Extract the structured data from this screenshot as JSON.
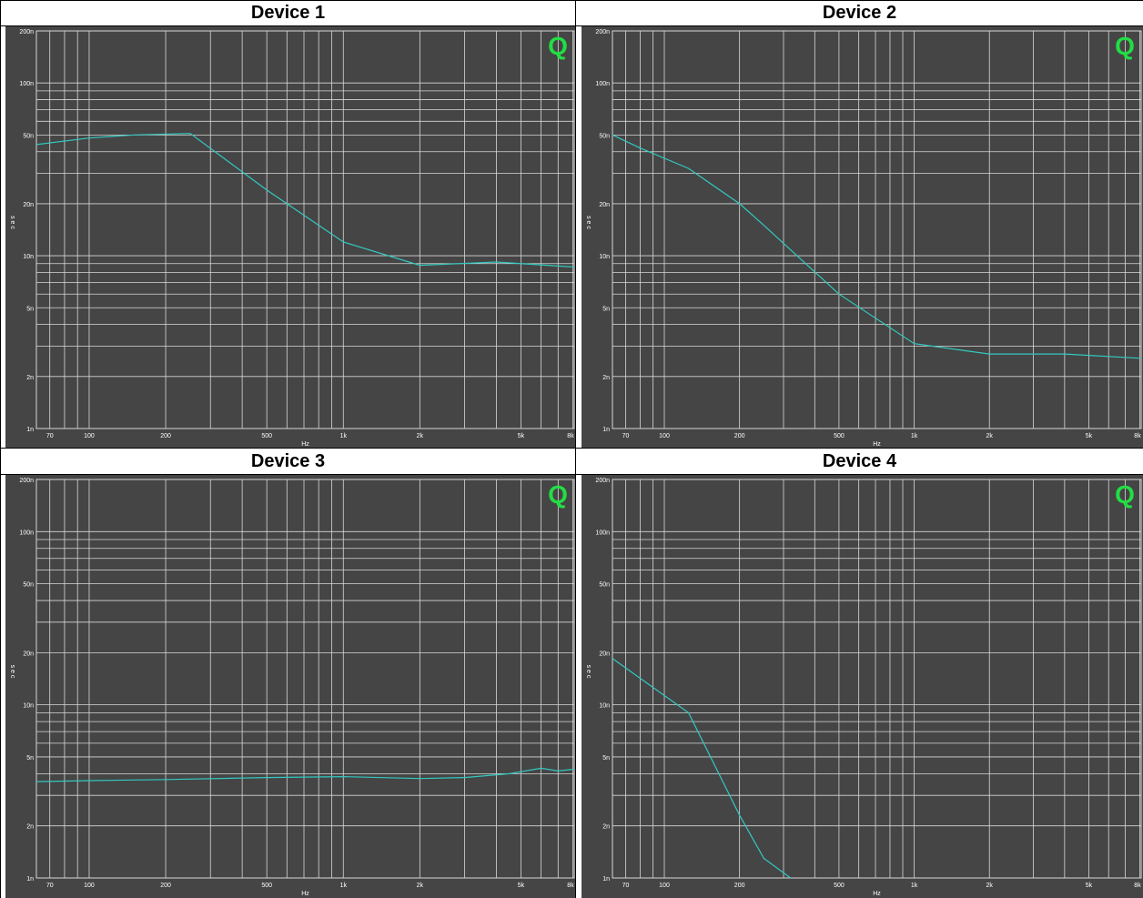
{
  "colors": {
    "background": "#454545",
    "grid": "#d8d8d8",
    "trace": "#33c8c0",
    "logo": "#22dd44",
    "label": "#ffffff"
  },
  "chart_data": [
    {
      "type": "line",
      "title": "Device 1",
      "xlabel": "Hz",
      "ylabel": "s e c",
      "xscale": "log",
      "yscale": "log",
      "xlim": [
        62,
        8100
      ],
      "ylim": [
        1e-09,
        2e-07
      ],
      "xticks": [
        {
          "v": 70,
          "t": "70"
        },
        {
          "v": 100,
          "t": "100"
        },
        {
          "v": 200,
          "t": "200"
        },
        {
          "v": 500,
          "t": "500"
        },
        {
          "v": 1000,
          "t": "1k"
        },
        {
          "v": 2000,
          "t": "2k"
        },
        {
          "v": 5000,
          "t": "5k"
        },
        {
          "v": 8000,
          "t": "8k"
        }
      ],
      "yticks": [
        {
          "v": 1e-09,
          "t": "1n"
        },
        {
          "v": 2e-09,
          "t": "2n"
        },
        {
          "v": 5e-09,
          "t": "5n"
        },
        {
          "v": 1e-08,
          "t": "10n"
        },
        {
          "v": 2e-08,
          "t": "20n"
        },
        {
          "v": 5e-08,
          "t": "50n"
        },
        {
          "v": 1e-07,
          "t": "100n"
        },
        {
          "v": 2e-07,
          "t": "200n"
        }
      ],
      "grid": true,
      "logo": "Q",
      "series": [
        {
          "x": [
            62,
            100,
            150,
            250,
            500,
            1000,
            2000,
            4000,
            8100
          ],
          "y": [
            4.4e-08,
            4.8e-08,
            5e-08,
            5.1e-08,
            2.4e-08,
            1.2e-08,
            8.8e-09,
            9.2e-09,
            8.6e-09
          ]
        }
      ]
    },
    {
      "type": "line",
      "title": "Device 2",
      "xlabel": "Hz",
      "ylabel": "s e c",
      "xscale": "log",
      "yscale": "log",
      "xlim": [
        62,
        8100
      ],
      "ylim": [
        1e-09,
        2e-07
      ],
      "xticks": [
        {
          "v": 70,
          "t": "70"
        },
        {
          "v": 100,
          "t": "100"
        },
        {
          "v": 200,
          "t": "200"
        },
        {
          "v": 500,
          "t": "500"
        },
        {
          "v": 1000,
          "t": "1k"
        },
        {
          "v": 2000,
          "t": "2k"
        },
        {
          "v": 5000,
          "t": "5k"
        },
        {
          "v": 8000,
          "t": "8k"
        }
      ],
      "yticks": [
        {
          "v": 1e-09,
          "t": "1n"
        },
        {
          "v": 2e-09,
          "t": "2n"
        },
        {
          "v": 5e-09,
          "t": "5n"
        },
        {
          "v": 1e-08,
          "t": "10n"
        },
        {
          "v": 2e-08,
          "t": "20n"
        },
        {
          "v": 5e-08,
          "t": "50n"
        },
        {
          "v": 1e-07,
          "t": "100n"
        },
        {
          "v": 2e-07,
          "t": "200n"
        }
      ],
      "grid": true,
      "logo": "Q",
      "series": [
        {
          "x": [
            62,
            80,
            125,
            200,
            250,
            500,
            1000,
            2000,
            4000,
            8100
          ],
          "y": [
            5e-08,
            4.2e-08,
            3.2e-08,
            2e-08,
            1.5e-08,
            6e-09,
            3.1e-09,
            2.7e-09,
            2.7e-09,
            2.55e-09
          ]
        }
      ]
    },
    {
      "type": "line",
      "title": "Device 3",
      "xlabel": "Hz",
      "ylabel": "s e c",
      "xscale": "log",
      "yscale": "log",
      "xlim": [
        62,
        8100
      ],
      "ylim": [
        1e-09,
        2e-07
      ],
      "xticks": [
        {
          "v": 70,
          "t": "70"
        },
        {
          "v": 100,
          "t": "100"
        },
        {
          "v": 200,
          "t": "200"
        },
        {
          "v": 500,
          "t": "500"
        },
        {
          "v": 1000,
          "t": "1k"
        },
        {
          "v": 2000,
          "t": "2k"
        },
        {
          "v": 5000,
          "t": "5k"
        },
        {
          "v": 8000,
          "t": "8k"
        }
      ],
      "yticks": [
        {
          "v": 1e-09,
          "t": "1n"
        },
        {
          "v": 2e-09,
          "t": "2n"
        },
        {
          "v": 5e-09,
          "t": "5n"
        },
        {
          "v": 1e-08,
          "t": "10n"
        },
        {
          "v": 2e-08,
          "t": "20n"
        },
        {
          "v": 5e-08,
          "t": "50n"
        },
        {
          "v": 1e-07,
          "t": "100n"
        },
        {
          "v": 2e-07,
          "t": "200n"
        }
      ],
      "grid": true,
      "logo": "Q",
      "series": [
        {
          "x": [
            62,
            100,
            200,
            500,
            1000,
            2000,
            3000,
            4500,
            6000,
            7000,
            8100
          ],
          "y": [
            3.6e-09,
            3.65e-09,
            3.7e-09,
            3.8e-09,
            3.85e-09,
            3.75e-09,
            3.8e-09,
            4e-09,
            4.3e-09,
            4.15e-09,
            4.25e-09
          ]
        }
      ]
    },
    {
      "type": "line",
      "title": "Device 4",
      "xlabel": "Hz",
      "ylabel": "s e c",
      "xscale": "log",
      "yscale": "log",
      "xlim": [
        62,
        8100
      ],
      "ylim": [
        1e-09,
        2e-07
      ],
      "xticks": [
        {
          "v": 70,
          "t": "70"
        },
        {
          "v": 100,
          "t": "100"
        },
        {
          "v": 200,
          "t": "200"
        },
        {
          "v": 500,
          "t": "500"
        },
        {
          "v": 1000,
          "t": "1k"
        },
        {
          "v": 2000,
          "t": "2k"
        },
        {
          "v": 5000,
          "t": "5k"
        },
        {
          "v": 8000,
          "t": "8k"
        }
      ],
      "yticks": [
        {
          "v": 1e-09,
          "t": "1n"
        },
        {
          "v": 2e-09,
          "t": "2n"
        },
        {
          "v": 5e-09,
          "t": "5n"
        },
        {
          "v": 1e-08,
          "t": "10n"
        },
        {
          "v": 2e-08,
          "t": "20n"
        },
        {
          "v": 5e-08,
          "t": "50n"
        },
        {
          "v": 1e-07,
          "t": "100n"
        },
        {
          "v": 2e-07,
          "t": "200n"
        }
      ],
      "grid": true,
      "logo": "Q",
      "series": [
        {
          "x": [
            62,
            125,
            200,
            250,
            320
          ],
          "y": [
            1.85e-08,
            9e-09,
            2.3e-09,
            1.3e-09,
            1e-09
          ]
        }
      ]
    }
  ]
}
